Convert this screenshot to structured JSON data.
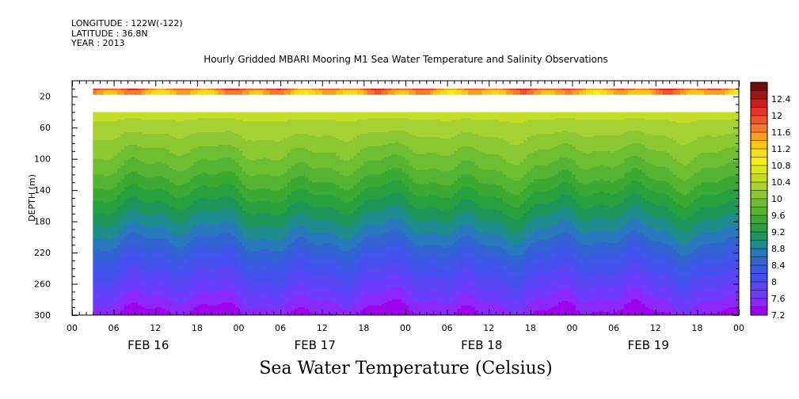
{
  "header": {
    "longitude": "LONGITUDE : 122W(-122)",
    "latitude": "LATITUDE : 36.8N",
    "year": "YEAR : 2013",
    "title": "Hourly Gridded MBARI Mooring M1 Sea Water Temperature and Salinity Observations"
  },
  "chart_data": {
    "type": "heatmap",
    "title": "Hourly Gridded MBARI Mooring M1 Sea Water Temperature and Salinity Observations",
    "xlabel": "",
    "ylabel": "DEPTH (m)",
    "colorbar_label": "Sea Water Temperature (Celsius)",
    "x_range_hours": [
      0,
      96
    ],
    "x_tick_labels": [
      "00",
      "06",
      "12",
      "18",
      "00",
      "06",
      "12",
      "18",
      "00",
      "06",
      "12",
      "18",
      "00",
      "06",
      "12",
      "18",
      "00"
    ],
    "x_tick_hours": [
      0,
      6,
      12,
      18,
      24,
      30,
      36,
      42,
      48,
      54,
      60,
      66,
      72,
      78,
      84,
      90,
      96
    ],
    "date_labels": [
      {
        "label": "FEB 16",
        "hour": 12
      },
      {
        "label": "FEB 17",
        "hour": 36
      },
      {
        "label": "FEB 18",
        "hour": 60
      },
      {
        "label": "FEB 19",
        "hour": 84
      }
    ],
    "data_start_hour": 3,
    "y_range": [
      300,
      0
    ],
    "y_ticks": [
      20,
      60,
      100,
      140,
      180,
      220,
      260,
      300
    ],
    "depth_blocks": [
      {
        "top": 10,
        "bottom": 12,
        "value": 11.9
      },
      {
        "top": 12,
        "bottom": 18,
        "value": 11.4
      }
    ],
    "missing_depth_band": [
      18,
      40
    ],
    "profile_depths": [
      40,
      60,
      80,
      100,
      120,
      140,
      160,
      180,
      200,
      220,
      240,
      260,
      280,
      300
    ],
    "profile_values": [
      10.5,
      10.3,
      10.1,
      9.9,
      9.7,
      9.45,
      9.2,
      8.95,
      8.7,
      8.4,
      8.1,
      7.85,
      7.6,
      7.35
    ],
    "colorbar_levels": [
      7.2,
      7.4,
      7.6,
      7.8,
      8,
      8.2,
      8.4,
      8.6,
      8.8,
      9,
      9.2,
      9.4,
      9.6,
      9.8,
      10,
      10.2,
      10.4,
      10.6,
      10.8,
      11,
      11.2,
      11.4,
      11.6,
      11.8,
      12,
      12.2,
      12.4
    ],
    "colorbar_labels": [
      "12.4",
      "12",
      "11.6",
      "11.2",
      "10.8",
      "10.4",
      "10",
      "9.6",
      "9.2",
      "8.8",
      "8.4",
      "8",
      "7.6",
      "7.2"
    ],
    "colors": [
      "#a000f0",
      "#8c28ff",
      "#6e3cff",
      "#5a46f5",
      "#4650f0",
      "#3c5ae6",
      "#3264d2",
      "#2878be",
      "#1e8c8c",
      "#1e965a",
      "#28a03c",
      "#3caa32",
      "#55b432",
      "#6ebe32",
      "#8cc832",
      "#a5d232",
      "#c3dc28",
      "#dce61e",
      "#f5f014",
      "#fadc14",
      "#fac814",
      "#faa01e",
      "#fa7828",
      "#f55028",
      "#e63228",
      "#c81e1e"
    ],
    "colorbar_colors": [
      "#a000f0",
      "#8c28ff",
      "#6e3cff",
      "#5a46f5",
      "#4650f0",
      "#3c5ae6",
      "#3264d2",
      "#2878be",
      "#1e8c8c",
      "#1e965a",
      "#28a03c",
      "#3caa32",
      "#55b432",
      "#6ebe32",
      "#8cc832",
      "#a5d232",
      "#c3dc28",
      "#dce61e",
      "#f5f014",
      "#fadc14",
      "#fac814",
      "#faa01e",
      "#fa7828",
      "#f55028",
      "#e63228",
      "#c81e1e",
      "#a01414",
      "#780a0a"
    ]
  },
  "footer": {
    "variable_title": "Sea Water Temperature (Celsius)"
  }
}
